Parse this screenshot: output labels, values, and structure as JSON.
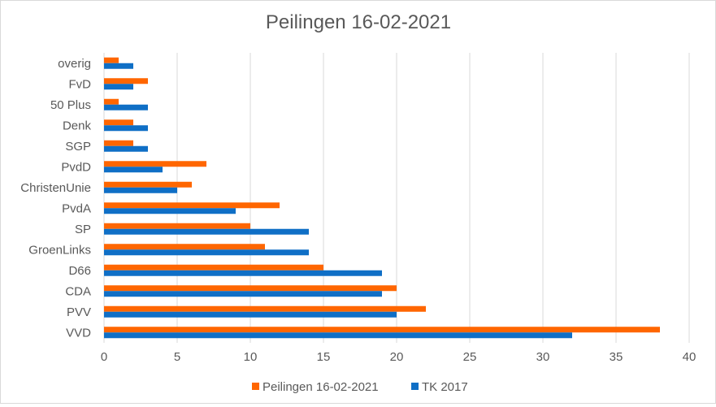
{
  "chart_data": {
    "type": "bar",
    "orientation": "horizontal",
    "title": "Peilingen 16-02-2021",
    "categories": [
      "VVD",
      "PVV",
      "CDA",
      "D66",
      "GroenLinks",
      "SP",
      "PvdA",
      "ChristenUnie",
      "PvdD",
      "SGP",
      "Denk",
      "50 Plus",
      "FvD",
      "overig"
    ],
    "series": [
      {
        "name": "Peilingen 16-02-2021",
        "color": "#ff6600",
        "values": [
          38,
          22,
          20,
          15,
          11,
          10,
          12,
          6,
          7,
          2,
          2,
          1,
          3,
          1
        ]
      },
      {
        "name": "TK 2017",
        "color": "#0f6fc6",
        "values": [
          32,
          20,
          19,
          19,
          14,
          14,
          9,
          5,
          4,
          3,
          3,
          3,
          2,
          2
        ]
      }
    ],
    "xlim": [
      0,
      40
    ],
    "xticks": [
      "0",
      "5",
      "10",
      "15",
      "20",
      "25",
      "30",
      "35",
      "40"
    ],
    "grid": true,
    "legend": "bottom"
  }
}
